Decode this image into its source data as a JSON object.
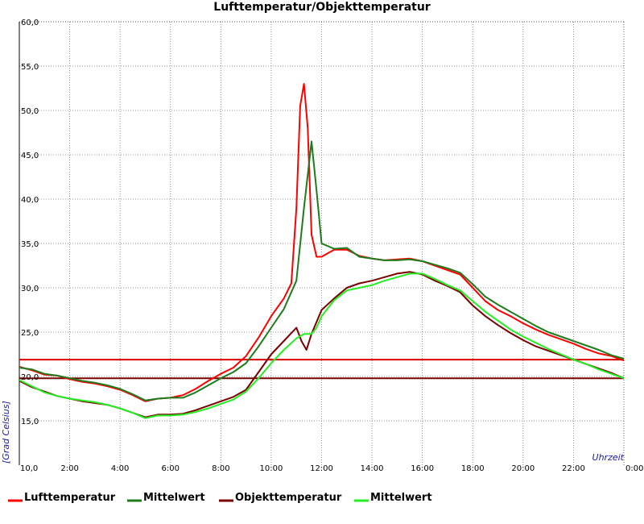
{
  "chart_data": {
    "type": "line",
    "title": "Lufttemperatur/Objekttemperatur",
    "xlabel": "Uhrzeit",
    "ylabel": "[Grad Celsius]",
    "x_unit": "hours",
    "xlim": [
      0,
      24
    ],
    "ylim": [
      10,
      60
    ],
    "x_ticks": [
      0,
      2,
      4,
      6,
      8,
      10,
      12,
      14,
      16,
      18,
      20,
      22,
      24
    ],
    "x_tick_labels": [
      "10,0",
      "2:00",
      "4:00",
      "6:00",
      "8:00",
      "10:00",
      "12:00",
      "14:00",
      "16:00",
      "18:00",
      "20:00",
      "22:00",
      "0:00"
    ],
    "y_ticks": [
      15,
      20,
      25,
      30,
      35,
      40,
      45,
      50,
      55,
      60
    ],
    "y_tick_labels": [
      "15,0",
      "20,0",
      "25,0",
      "30,0",
      "35,0",
      "40,0",
      "45,0",
      "50,0",
      "55,0",
      "60,0"
    ],
    "grid": true,
    "legend_position": "bottom",
    "series": [
      {
        "name": "Lufttemperatur",
        "color": "#ff0000",
        "x": [
          0,
          0.5,
          1,
          1.5,
          2,
          2.5,
          3,
          3.5,
          4,
          4.5,
          5,
          5.5,
          6,
          6.5,
          7,
          7.5,
          8,
          8.5,
          9,
          9.5,
          10,
          10.5,
          10.8,
          11,
          11.15,
          11.3,
          11.45,
          11.6,
          11.8,
          12,
          12.5,
          13,
          13.5,
          14,
          14.5,
          15,
          15.5,
          16,
          16.5,
          17,
          17.5,
          18,
          18.5,
          19,
          19.5,
          20,
          20.5,
          21,
          21.5,
          22,
          22.5,
          23,
          23.5,
          24
        ],
        "y": [
          21.1,
          20.7,
          20.2,
          20.1,
          19.7,
          19.4,
          19.2,
          18.9,
          18.5,
          17.9,
          17.2,
          17.5,
          17.6,
          17.9,
          18.6,
          19.5,
          20.3,
          21.0,
          22.3,
          24.4,
          26.8,
          28.8,
          30.5,
          39.0,
          50.5,
          53.0,
          48.0,
          36.0,
          33.5,
          33.5,
          34.3,
          34.3,
          33.6,
          33.3,
          33.1,
          33.2,
          33.3,
          33.0,
          32.5,
          32.0,
          31.5,
          30.0,
          28.5,
          27.5,
          26.8,
          26.0,
          25.3,
          24.7,
          24.2,
          23.7,
          23.1,
          22.6,
          22.3,
          21.8
        ]
      },
      {
        "name": "Mittelwert",
        "color": "#1e7b1e",
        "x": [
          0,
          0.5,
          1,
          1.5,
          2,
          2.5,
          3,
          3.5,
          4,
          4.5,
          5,
          5.5,
          6,
          6.5,
          7,
          7.5,
          8,
          8.5,
          9,
          9.5,
          10,
          10.5,
          11,
          11.3,
          11.6,
          11.8,
          12,
          12.5,
          13,
          13.5,
          14,
          14.5,
          15,
          15.5,
          16,
          16.5,
          17,
          17.5,
          18,
          18.5,
          19,
          19.5,
          20,
          20.5,
          21,
          21.5,
          22,
          22.5,
          23,
          23.5,
          24
        ],
        "y": [
          21.0,
          20.8,
          20.3,
          20.1,
          19.8,
          19.5,
          19.3,
          19.0,
          18.6,
          18.0,
          17.3,
          17.5,
          17.6,
          17.6,
          18.2,
          19.0,
          19.8,
          20.5,
          21.5,
          23.4,
          25.5,
          27.6,
          30.8,
          39.0,
          46.5,
          41.0,
          35.0,
          34.4,
          34.5,
          33.5,
          33.3,
          33.1,
          33.1,
          33.2,
          33.0,
          32.6,
          32.2,
          31.7,
          30.4,
          29.0,
          28.1,
          27.3,
          26.5,
          25.7,
          25.0,
          24.5,
          24.0,
          23.5,
          23.0,
          22.4,
          22.0
        ]
      },
      {
        "name": "Objekttemperatur",
        "color": "#7b0000",
        "x": [
          0,
          0.5,
          1,
          1.5,
          2,
          2.5,
          3,
          3.5,
          4,
          4.5,
          5,
          5.5,
          6,
          6.5,
          7,
          7.5,
          8,
          8.5,
          9,
          9.5,
          10,
          10.5,
          11,
          11.2,
          11.4,
          11.6,
          12,
          12.5,
          13,
          13.5,
          14,
          14.5,
          15,
          15.5,
          16,
          16.5,
          17,
          17.5,
          18,
          18.5,
          19,
          19.5,
          20,
          20.5,
          21,
          21.5,
          22,
          22.5,
          23,
          23.5,
          24
        ],
        "y": [
          19.5,
          18.8,
          18.3,
          17.8,
          17.5,
          17.2,
          17.0,
          16.8,
          16.4,
          15.9,
          15.4,
          15.7,
          15.7,
          15.8,
          16.2,
          16.7,
          17.2,
          17.7,
          18.5,
          20.5,
          22.5,
          24.0,
          25.5,
          24.0,
          23.0,
          24.8,
          27.5,
          28.8,
          30.0,
          30.5,
          30.8,
          31.2,
          31.6,
          31.8,
          31.5,
          30.8,
          30.2,
          29.5,
          28.0,
          26.8,
          25.8,
          24.9,
          24.1,
          23.4,
          22.9,
          22.4,
          21.9,
          21.4,
          20.9,
          20.4,
          19.8
        ]
      },
      {
        "name": "Mittelwert",
        "color": "#22ee22",
        "x": [
          0,
          0.5,
          1,
          1.5,
          2,
          2.5,
          3,
          3.5,
          4,
          4.5,
          5,
          5.5,
          6,
          6.5,
          7,
          7.5,
          8,
          8.5,
          9,
          9.5,
          10,
          10.5,
          11,
          11.3,
          11.6,
          11.8,
          12,
          12.5,
          13,
          13.5,
          14,
          14.5,
          15,
          15.5,
          16,
          16.5,
          17,
          17.5,
          18,
          18.5,
          19,
          19.5,
          20,
          20.5,
          21,
          21.5,
          22,
          22.5,
          23,
          23.5,
          24
        ],
        "y": [
          19.6,
          18.9,
          18.2,
          17.8,
          17.5,
          17.3,
          17.1,
          16.8,
          16.4,
          15.9,
          15.3,
          15.6,
          15.6,
          15.7,
          16.0,
          16.4,
          16.9,
          17.4,
          18.3,
          19.8,
          21.5,
          23.0,
          24.3,
          24.8,
          24.8,
          25.5,
          26.8,
          28.6,
          29.7,
          30.0,
          30.3,
          30.8,
          31.2,
          31.6,
          31.6,
          31.0,
          30.3,
          29.7,
          28.5,
          27.3,
          26.3,
          25.3,
          24.5,
          23.8,
          23.1,
          22.5,
          21.9,
          21.4,
          20.8,
          20.3,
          19.8
        ]
      }
    ],
    "reference_lines": [
      {
        "y": 21.9,
        "color": "#dd0000"
      },
      {
        "y": 19.8,
        "color": "#7b0000"
      }
    ]
  }
}
